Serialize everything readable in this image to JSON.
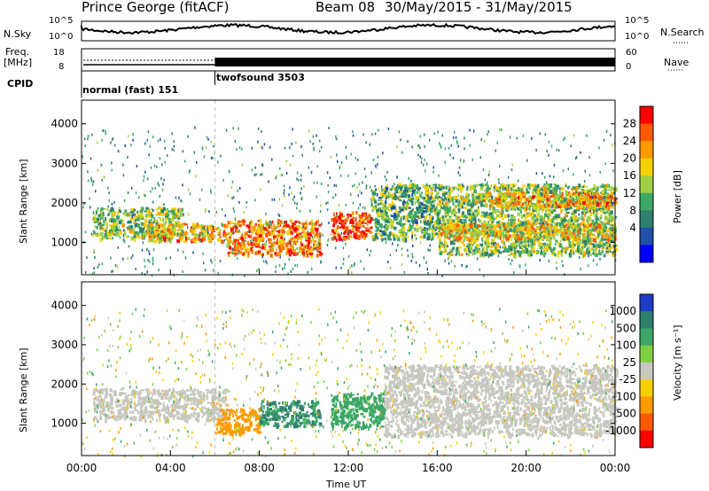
{
  "header": {
    "station": "Prince George (fitACF)",
    "beam": "Beam 08",
    "date_range": "30/May/2015 - 31/May/2015"
  },
  "top_panels": {
    "nsky_label": "N.Sky",
    "nsky_ticks": [
      "10^5",
      "10^0"
    ],
    "nsearch_label": "N.Search",
    "nsearch_ticks": [
      "10^5",
      "10^0"
    ],
    "freq_label_line1": "Freq.",
    "freq_label_line2": "[MHz]",
    "freq_ticks": [
      "18",
      "8"
    ],
    "nave_label": "Nave",
    "nave_ticks": [
      "60",
      "0"
    ],
    "cpid_label": "CPID",
    "cpid_segments": [
      {
        "label": "normal (fast) 151",
        "start_hour": 0,
        "end_hour": 6
      },
      {
        "label": "twofsound 3503",
        "start_hour": 6,
        "end_hour": 24
      }
    ]
  },
  "chart_data": [
    {
      "type": "heatmap",
      "title": "",
      "ylabel": "Slant Range [km]",
      "xlabel": "",
      "xlim": [
        0,
        24
      ],
      "ylim": [
        180,
        4600
      ],
      "yticks": [
        "4000",
        "3000",
        "2000",
        "1000"
      ],
      "colorbar": {
        "label": "Power [dB]",
        "ticks": [
          "28",
          "24",
          "20",
          "16",
          "12",
          "8",
          "4"
        ],
        "colors": [
          "#ff0000",
          "#ff5a00",
          "#ff9a00",
          "#f7d000",
          "#9fd043",
          "#3ca766",
          "#2f7f6f",
          "#1f4fa8",
          "#0000ff"
        ]
      },
      "echo_regions": [
        {
          "x0": 0.5,
          "x1": 4.5,
          "y0": 1100,
          "y1": 1900,
          "value": 14
        },
        {
          "x0": 3.0,
          "x1": 6.5,
          "y0": 1050,
          "y1": 1500,
          "value": 22
        },
        {
          "x0": 6.5,
          "x1": 10.7,
          "y0": 700,
          "y1": 1600,
          "value": 24
        },
        {
          "x0": 11.2,
          "x1": 13.0,
          "y0": 1100,
          "y1": 1800,
          "value": 28
        },
        {
          "x0": 13.0,
          "x1": 16.0,
          "y0": 1100,
          "y1": 2500,
          "value": 12
        },
        {
          "x0": 16.0,
          "x1": 24.0,
          "y0": 700,
          "y1": 2500,
          "value": 14
        },
        {
          "x0": 18.0,
          "x1": 24.0,
          "y0": 1900,
          "y1": 2300,
          "value": 22
        },
        {
          "x0": 16.0,
          "x1": 24.0,
          "y0": 1100,
          "y1": 1500,
          "value": 20
        }
      ]
    },
    {
      "type": "heatmap",
      "title": "",
      "ylabel": "Slant Range [km]",
      "xlabel": "Time UT",
      "xlim": [
        0,
        24
      ],
      "ylim": [
        180,
        4600
      ],
      "xticks": [
        "00:00",
        "04:00",
        "08:00",
        "12:00",
        "16:00",
        "20:00",
        "00:00"
      ],
      "yticks": [
        "4000",
        "3000",
        "2000",
        "1000"
      ],
      "colorbar": {
        "label": "Velocity [m s⁻¹]",
        "ticks": [
          "1000",
          "500",
          "100",
          "25",
          "-25",
          "-100",
          "-500",
          "-1000"
        ],
        "colors": [
          "#1e3cc8",
          "#2f7f6f",
          "#3ca766",
          "#7fd040",
          "#c8c8c0",
          "#f7d000",
          "#ff9a00",
          "#ff5a00",
          "#ff0000"
        ]
      },
      "echo_regions": [
        {
          "x0": 0.5,
          "x1": 6.5,
          "y0": 1100,
          "y1": 1900,
          "value": 0
        },
        {
          "x0": 6.0,
          "x1": 8.0,
          "y0": 750,
          "y1": 1400,
          "value": -300
        },
        {
          "x0": 8.0,
          "x1": 10.7,
          "y0": 950,
          "y1": 1600,
          "value": 500
        },
        {
          "x0": 11.2,
          "x1": 13.6,
          "y0": 900,
          "y1": 1800,
          "value": 300
        },
        {
          "x0": 13.6,
          "x1": 24.0,
          "y0": 700,
          "y1": 2500,
          "value": 0
        }
      ]
    }
  ]
}
